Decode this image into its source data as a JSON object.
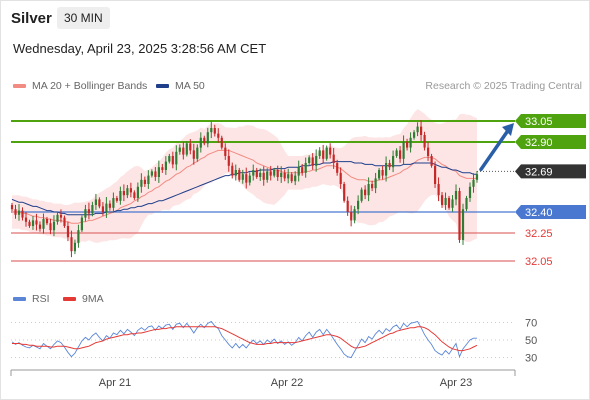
{
  "header": {
    "symbol": "Silver",
    "timeframe": "30 MIN",
    "datetime": "Wednesday, April 23, 2025 3:28:56 AM CET",
    "credit": "Research © 2025 Trading Central"
  },
  "legend": {
    "bollinger": {
      "label": "MA 20 + Bollinger Bands",
      "color": "#f28b82"
    },
    "ma50": {
      "label": "MA 50",
      "color": "#1f3f8a"
    }
  },
  "rsi_legend": {
    "rsi": {
      "label": "RSI",
      "color": "#5b86d6"
    },
    "ma": {
      "label": "9MA",
      "color": "#e53935"
    }
  },
  "colors": {
    "up": "#2e7d32",
    "down": "#c62828",
    "resistance": "#4fa30f",
    "support_blue": "#4a78d0",
    "support_red": "#e07070",
    "arrow": "#2a5fa8",
    "current": "#333333"
  },
  "chart_data": [
    {
      "type": "candlestick",
      "x_ticks": [
        "Apr 21",
        "Apr 22",
        "Apr 23"
      ],
      "ylim": [
        31.95,
        33.2
      ],
      "grid": false,
      "levels": [
        {
          "value": 33.05,
          "label": "33.05",
          "kind": "resistance"
        },
        {
          "value": 32.9,
          "label": "32.90",
          "kind": "resistance"
        },
        {
          "value": 32.69,
          "label": "32.69",
          "kind": "current"
        },
        {
          "value": 32.4,
          "label": "32.40",
          "kind": "support_blue"
        },
        {
          "value": 32.25,
          "label": "32.25",
          "kind": "support_red"
        },
        {
          "value": 32.05,
          "label": "32.05",
          "kind": "support_red"
        }
      ],
      "forecast_arrow": {
        "from": 32.69,
        "to": 33.05
      },
      "close": [
        32.42,
        32.38,
        32.41,
        32.36,
        32.33,
        32.3,
        32.34,
        32.31,
        32.28,
        32.35,
        32.32,
        32.27,
        32.33,
        32.38,
        32.36,
        32.3,
        32.22,
        32.12,
        32.18,
        32.27,
        32.36,
        32.42,
        32.39,
        32.45,
        32.49,
        32.44,
        32.4,
        32.46,
        32.43,
        32.5,
        32.48,
        32.55,
        32.52,
        32.57,
        32.54,
        32.5,
        32.58,
        32.63,
        32.6,
        32.66,
        32.69,
        32.65,
        32.72,
        32.7,
        32.76,
        32.8,
        32.74,
        32.83,
        32.86,
        32.81,
        32.89,
        32.84,
        32.78,
        32.86,
        32.93,
        32.89,
        32.97,
        33.0,
        32.96,
        32.93,
        32.86,
        32.8,
        32.73,
        32.66,
        32.7,
        32.63,
        32.67,
        32.61,
        32.66,
        32.7,
        32.65,
        32.68,
        32.63,
        32.69,
        32.66,
        32.7,
        32.65,
        32.68,
        32.64,
        32.67,
        32.62,
        32.66,
        32.72,
        32.68,
        32.75,
        32.79,
        32.73,
        32.8,
        32.84,
        32.78,
        32.86,
        32.81,
        32.75,
        32.68,
        32.6,
        32.48,
        32.4,
        32.34,
        32.42,
        32.48,
        32.56,
        32.52,
        32.6,
        32.57,
        32.64,
        32.7,
        32.66,
        32.75,
        32.72,
        32.8,
        32.84,
        32.78,
        32.9,
        32.86,
        32.93,
        32.97,
        33.01,
        32.95,
        32.86,
        32.8,
        32.73,
        32.6,
        32.52,
        32.45,
        32.5,
        32.43,
        32.49,
        32.55,
        32.2,
        32.42,
        32.5,
        32.58,
        32.63,
        32.67
      ],
      "ma20": [
        32.4,
        32.4,
        32.4,
        32.39,
        32.39,
        32.38,
        32.37,
        32.37,
        32.36,
        32.36,
        32.35,
        32.35,
        32.34,
        32.34,
        32.34,
        32.33,
        32.33,
        32.32,
        32.32,
        32.32,
        32.33,
        32.33,
        32.34,
        32.34,
        32.35,
        32.36,
        32.37,
        32.38,
        32.39,
        32.4,
        32.41,
        32.43,
        32.44,
        32.45,
        32.46,
        32.48,
        32.49,
        32.51,
        32.52,
        32.54,
        32.55,
        32.57,
        32.58,
        32.6,
        32.62,
        32.63,
        32.65,
        32.67,
        32.68,
        32.7,
        32.72,
        32.73,
        32.75,
        32.76,
        32.78,
        32.79,
        32.81,
        32.82,
        32.83,
        32.84,
        32.84,
        32.84,
        32.84,
        32.83,
        32.82,
        32.81,
        32.8,
        32.79,
        32.78,
        32.77,
        32.75,
        32.74,
        32.73,
        32.72,
        32.71,
        32.7,
        32.7,
        32.69,
        32.68,
        32.68,
        32.68,
        32.68,
        32.68,
        32.68,
        32.69,
        32.69,
        32.7,
        32.7,
        32.71,
        32.72,
        32.73,
        32.73,
        32.73,
        32.72,
        32.71,
        32.69,
        32.67,
        32.65,
        32.64,
        32.63,
        32.63,
        32.63,
        32.62,
        32.62,
        32.62,
        32.63,
        32.63,
        32.64,
        32.65,
        32.66,
        32.67,
        32.68,
        32.7,
        32.71,
        32.73,
        32.75,
        32.77,
        32.78,
        32.79,
        32.79,
        32.79,
        32.78,
        32.76,
        32.74,
        32.73,
        32.71,
        32.7,
        32.69,
        32.66,
        32.65,
        32.64,
        32.64,
        32.64,
        32.64
      ],
      "ma50": [
        32.49,
        32.48,
        32.47,
        32.47,
        32.46,
        32.45,
        32.44,
        32.44,
        32.43,
        32.42,
        32.41,
        32.41,
        32.4,
        32.4,
        32.39,
        32.39,
        32.38,
        32.38,
        32.38,
        32.38,
        32.38,
        32.38,
        32.38,
        32.38,
        32.39,
        32.39,
        32.39,
        32.4,
        32.4,
        32.4,
        32.41,
        32.41,
        32.42,
        32.42,
        32.43,
        32.43,
        32.44,
        32.44,
        32.45,
        32.46,
        32.46,
        32.47,
        32.48,
        32.48,
        32.49,
        32.5,
        32.51,
        32.52,
        32.53,
        32.54,
        32.55,
        32.56,
        32.57,
        32.58,
        32.59,
        32.6,
        32.61,
        32.62,
        32.63,
        32.64,
        32.65,
        32.66,
        32.66,
        32.67,
        32.67,
        32.68,
        32.68,
        32.68,
        32.69,
        32.69,
        32.69,
        32.7,
        32.7,
        32.7,
        32.7,
        32.71,
        32.71,
        32.71,
        32.71,
        32.72,
        32.72,
        32.72,
        32.72,
        32.73,
        32.73,
        32.73,
        32.74,
        32.74,
        32.74,
        32.75,
        32.75,
        32.75,
        32.76,
        32.76,
        32.76,
        32.76,
        32.76,
        32.76,
        32.75,
        32.75,
        32.75,
        32.74,
        32.74,
        32.74,
        32.73,
        32.73,
        32.73,
        32.73,
        32.73,
        32.73,
        32.73,
        32.73,
        32.74,
        32.74,
        32.74,
        32.75,
        32.75,
        32.75,
        32.75,
        32.75,
        32.75,
        32.74,
        32.73,
        32.72,
        32.72,
        32.71,
        32.7,
        32.7,
        32.69,
        32.68,
        32.68,
        32.68,
        32.67,
        32.67
      ]
    },
    {
      "type": "line",
      "name": "RSI panel",
      "ylim": [
        25,
        75
      ],
      "y_ticks": [
        70,
        50,
        30
      ],
      "series": [
        {
          "name": "RSI",
          "values": [
            48,
            45,
            47,
            44,
            42,
            41,
            44,
            42,
            40,
            46,
            43,
            40,
            45,
            49,
            47,
            42,
            36,
            31,
            35,
            42,
            49,
            53,
            50,
            55,
            58,
            53,
            49,
            55,
            52,
            58,
            56,
            61,
            57,
            62,
            59,
            55,
            61,
            64,
            61,
            65,
            66,
            61,
            66,
            63,
            67,
            68,
            62,
            68,
            69,
            64,
            69,
            64,
            58,
            64,
            68,
            64,
            69,
            71,
            66,
            63,
            55,
            50,
            45,
            41,
            46,
            41,
            45,
            41,
            46,
            50,
            46,
            49,
            45,
            50,
            47,
            51,
            46,
            49,
            45,
            48,
            44,
            47,
            53,
            49,
            55,
            59,
            53,
            59,
            62,
            56,
            62,
            57,
            51,
            45,
            40,
            34,
            31,
            30,
            37,
            44,
            51,
            47,
            54,
            51,
            57,
            61,
            57,
            63,
            60,
            65,
            67,
            62,
            69,
            65,
            69,
            70,
            71,
            64,
            56,
            50,
            45,
            38,
            35,
            33,
            38,
            34,
            40,
            46,
            31,
            40,
            45,
            50,
            52,
            52
          ]
        },
        {
          "name": "9MA",
          "values": [
            46,
            46,
            46,
            45,
            45,
            44,
            44,
            43,
            43,
            43,
            43,
            42,
            42,
            43,
            43,
            43,
            42,
            41,
            40,
            40,
            41,
            42,
            43,
            45,
            47,
            48,
            49,
            51,
            52,
            53,
            54,
            55,
            56,
            56,
            57,
            57,
            58,
            58,
            59,
            60,
            61,
            62,
            62,
            63,
            63,
            64,
            64,
            65,
            65,
            65,
            65,
            65,
            65,
            65,
            65,
            65,
            65,
            65,
            65,
            64,
            63,
            61,
            59,
            57,
            55,
            53,
            51,
            49,
            47,
            46,
            45,
            45,
            45,
            46,
            46,
            47,
            47,
            47,
            47,
            47,
            47,
            47,
            48,
            49,
            50,
            51,
            52,
            53,
            54,
            55,
            56,
            56,
            55,
            54,
            52,
            49,
            46,
            43,
            41,
            41,
            42,
            43,
            45,
            47,
            49,
            51,
            53,
            55,
            57,
            58,
            60,
            61,
            62,
            63,
            64,
            64,
            65,
            65,
            64,
            62,
            59,
            56,
            52,
            48,
            45,
            42,
            40,
            39,
            38,
            38,
            39,
            40,
            42,
            44
          ]
        }
      ]
    }
  ]
}
